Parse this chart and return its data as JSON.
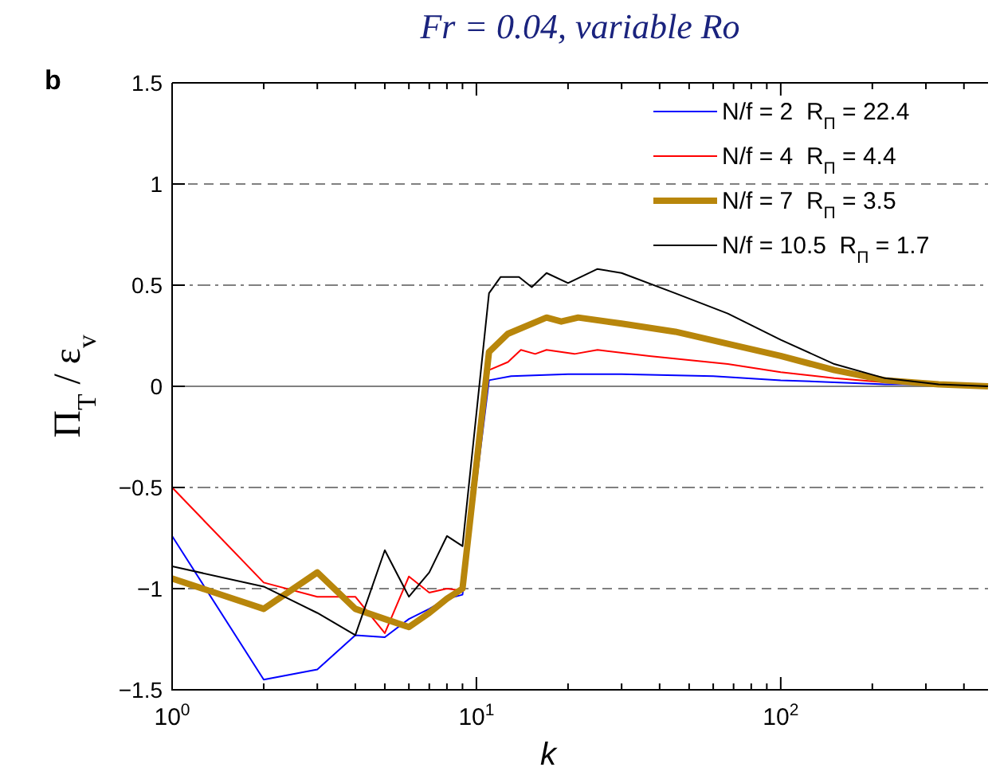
{
  "chart_data": {
    "type": "line",
    "title": "Fr = 0.04, variable Ro",
    "xlabel": "k",
    "ylabel": "Π$_{T}$ / ε$_{v}$",
    "log": "x",
    "xlim": [
      1,
      480
    ],
    "xticks": [
      {
        "value": 1,
        "label": "10$^{0}$"
      },
      {
        "value": 10,
        "label": "10$^{1}$"
      },
      {
        "value": 100,
        "label": "10$^{2}$"
      }
    ],
    "ylim": [
      -1.5,
      1.5
    ],
    "yticks": [
      {
        "value": -1.5,
        "label": "−1.5"
      },
      {
        "value": -1,
        "label": "−1"
      },
      {
        "value": -0.5,
        "label": "−0.5"
      },
      0,
      0.5,
      1,
      1.5
    ],
    "legend": "top right",
    "grid": false,
    "annotations": [
      "b"
    ],
    "ref_lines": [
      {
        "axis": "y",
        "value": 1,
        "color": "#808080",
        "line_style": "dashed"
      },
      {
        "axis": "y",
        "value": 0.5,
        "color": "#808080",
        "line_style": "dashdot"
      },
      {
        "axis": "y",
        "value": 0,
        "color": "#808080",
        "line_style": "solid"
      },
      {
        "axis": "y",
        "value": -0.5,
        "color": "#808080",
        "line_style": "dashdot"
      },
      {
        "axis": "y",
        "value": -1,
        "color": "#808080",
        "line_style": "dashed"
      }
    ],
    "series": [
      {
        "name": "N/f = 2  R$_{Π}$ = 22.4",
        "color": "#0000ff",
        "x": [
          1,
          2,
          3,
          4,
          5,
          6,
          7,
          8,
          9,
          11,
          13,
          20,
          30,
          60,
          100,
          150,
          220,
          330,
          480
        ],
        "values": [
          -0.74,
          -1.45,
          -1.4,
          -1.23,
          -1.24,
          -1.15,
          -1.1,
          -1.05,
          -1.03,
          0.03,
          0.05,
          0.06,
          0.06,
          0.05,
          0.03,
          0.02,
          0.01,
          0.01,
          0
        ]
      },
      {
        "name": "N/f = 4  R$_{Π}$ = 4.4",
        "color": "#ff0000",
        "x": [
          1,
          2,
          3,
          4,
          5,
          6,
          7,
          8,
          9,
          11,
          12.7,
          14,
          15.6,
          17,
          21,
          25,
          37,
          67,
          100,
          150,
          220,
          330,
          480
        ],
        "values": [
          -0.5,
          -0.97,
          -1.04,
          -1.04,
          -1.22,
          -0.94,
          -1.02,
          -1,
          -1.01,
          0.08,
          0.12,
          0.18,
          0.16,
          0.18,
          0.16,
          0.18,
          0.15,
          0.11,
          0.07,
          0.04,
          0.02,
          0.01,
          0
        ]
      },
      {
        "name": "N/f = 7  R$_{Π}$ = 3.5",
        "color": "#b8860b",
        "x": [
          1,
          2,
          3,
          4,
          5,
          6,
          7,
          8,
          9,
          11,
          12.7,
          17,
          19,
          21.6,
          30,
          45,
          67,
          100,
          150,
          220,
          330,
          480
        ],
        "values": [
          -0.95,
          -1.1,
          -0.92,
          -1.1,
          -1.15,
          -1.19,
          -1.12,
          -1.05,
          -1,
          0.17,
          0.26,
          0.34,
          0.32,
          0.34,
          0.31,
          0.27,
          0.21,
          0.15,
          0.08,
          0.03,
          0.01,
          0
        ]
      },
      {
        "name": "N/f = 10.5  R$_{Π}$ = 1.7",
        "color": "#000000",
        "x": [
          1,
          2,
          3,
          4,
          5,
          6,
          7,
          8,
          9,
          11,
          12,
          13.8,
          15.2,
          17,
          20,
          25,
          30,
          45,
          67,
          100,
          150,
          220,
          330,
          480
        ],
        "values": [
          -0.89,
          -0.99,
          -1.12,
          -1.23,
          -0.81,
          -1.04,
          -0.92,
          -0.74,
          -0.79,
          0.46,
          0.54,
          0.54,
          0.49,
          0.56,
          0.51,
          0.58,
          0.56,
          0.46,
          0.36,
          0.23,
          0.11,
          0.04,
          0.01,
          0
        ]
      }
    ]
  }
}
